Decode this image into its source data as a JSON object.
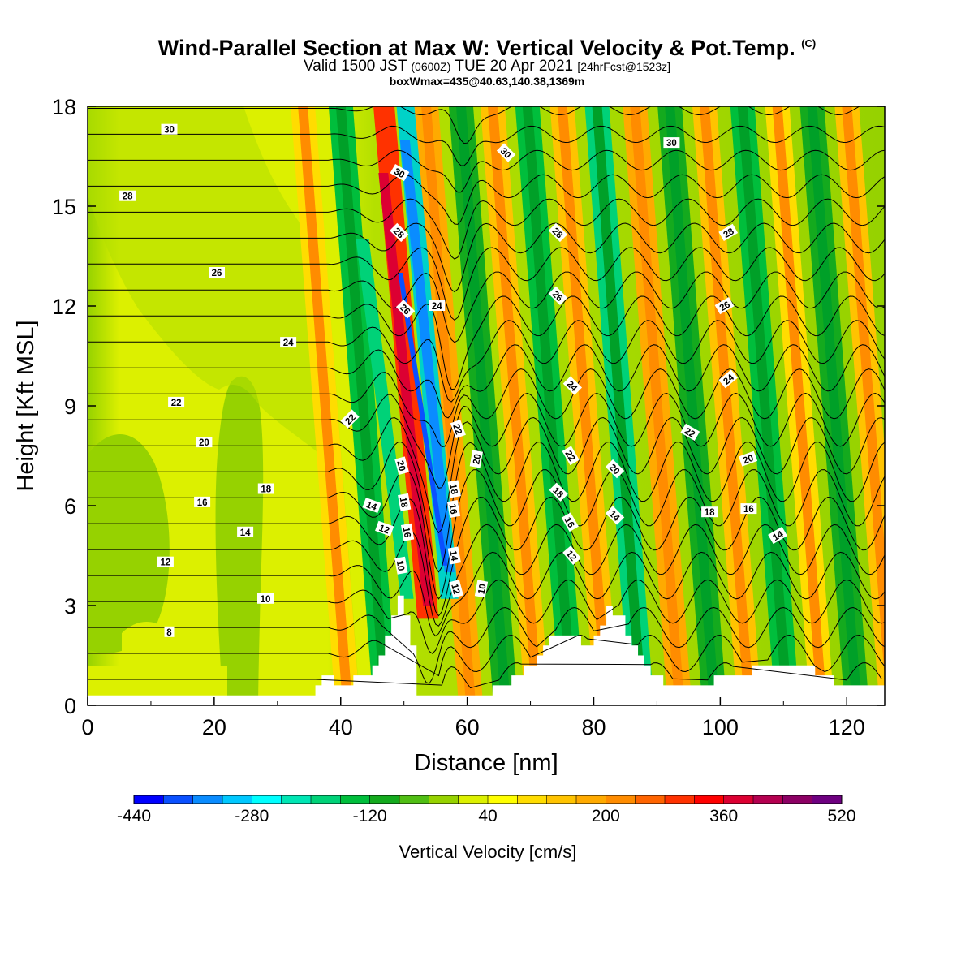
{
  "header": {
    "title": "Wind-Parallel Section at Max W: Vertical Velocity & Pot.Temp.",
    "title_mark": "(C)",
    "subtitle_main_a": "Valid 1500 JST",
    "subtitle_zulu": "(0600Z)",
    "subtitle_main_b": "TUE 20 Apr 2021",
    "subtitle_fcst": "[24hrFcst@1523z]",
    "info": "boxWmax=435@40.63,140.38,1369m"
  },
  "chart_data": {
    "type": "heatmap",
    "xlabel": "Distance [nm]",
    "ylabel": "Height [Kft MSL]",
    "xlim": [
      0,
      126
    ],
    "ylim": [
      0,
      18
    ],
    "x_ticks": [
      0,
      20,
      40,
      60,
      80,
      100,
      120
    ],
    "y_ticks": [
      0,
      3,
      6,
      9,
      12,
      15,
      18
    ],
    "colorbar": {
      "title": "Vertical Velocity [cm/s]",
      "tick_labels": [
        "-440",
        "-280",
        "-120",
        "40",
        "200",
        "360",
        "520"
      ],
      "tick_values": [
        -440,
        -280,
        -120,
        40,
        200,
        360,
        520
      ],
      "step": 40,
      "colors": [
        "#0000ff",
        "#0a50ff",
        "#0a8cff",
        "#00c8ff",
        "#00ffff",
        "#00e6b4",
        "#00d278",
        "#00be3c",
        "#14aa1e",
        "#50be14",
        "#96d200",
        "#dcf000",
        "#ffff00",
        "#ffdc00",
        "#ffc300",
        "#ffaa00",
        "#ff8c00",
        "#ff6400",
        "#ff3200",
        "#ff0000",
        "#dc0032",
        "#b40050",
        "#8c0064",
        "#6e0080"
      ]
    },
    "theta_contours": {
      "levels": [
        8,
        10,
        12,
        14,
        16,
        18,
        20,
        22,
        24,
        26,
        28,
        30
      ],
      "labels": [
        {
          "text": "30",
          "x": 12.9,
          "y": 17.3,
          "rot": 0
        },
        {
          "text": "28",
          "x": 6.3,
          "y": 15.3,
          "rot": 0
        },
        {
          "text": "26",
          "x": 20.4,
          "y": 13.0,
          "rot": 0
        },
        {
          "text": "24",
          "x": 31.7,
          "y": 10.9,
          "rot": 0
        },
        {
          "text": "22",
          "x": 14.0,
          "y": 9.1,
          "rot": 0
        },
        {
          "text": "20",
          "x": 18.4,
          "y": 7.9,
          "rot": 0
        },
        {
          "text": "18",
          "x": 28.2,
          "y": 6.5,
          "rot": 0
        },
        {
          "text": "16",
          "x": 18.1,
          "y": 6.1,
          "rot": 0
        },
        {
          "text": "14",
          "x": 24.9,
          "y": 5.2,
          "rot": 0
        },
        {
          "text": "12",
          "x": 12.3,
          "y": 4.3,
          "rot": 0
        },
        {
          "text": "10",
          "x": 28.1,
          "y": 3.2,
          "rot": 0
        },
        {
          "text": "8",
          "x": 12.9,
          "y": 2.2,
          "rot": 0
        },
        {
          "text": "30",
          "x": 49.3,
          "y": 16.0,
          "rot": 30
        },
        {
          "text": "28",
          "x": 49.2,
          "y": 14.2,
          "rot": 45
        },
        {
          "text": "26",
          "x": 50.2,
          "y": 11.9,
          "rot": 45
        },
        {
          "text": "24",
          "x": 55.2,
          "y": 12.0,
          "rot": 0
        },
        {
          "text": "22",
          "x": 41.5,
          "y": 8.6,
          "rot": -45
        },
        {
          "text": "22",
          "x": 58.5,
          "y": 8.3,
          "rot": 70
        },
        {
          "text": "20",
          "x": 49.6,
          "y": 7.2,
          "rot": 75
        },
        {
          "text": "20",
          "x": 61.5,
          "y": 7.4,
          "rot": -80
        },
        {
          "text": "18",
          "x": 50.0,
          "y": 6.1,
          "rot": 80
        },
        {
          "text": "18",
          "x": 57.9,
          "y": 6.5,
          "rot": 80
        },
        {
          "text": "16",
          "x": 50.5,
          "y": 5.2,
          "rot": 80
        },
        {
          "text": "16",
          "x": 57.8,
          "y": 5.9,
          "rot": 80
        },
        {
          "text": "14",
          "x": 44.9,
          "y": 6.0,
          "rot": 20
        },
        {
          "text": "14",
          "x": 57.9,
          "y": 4.5,
          "rot": 80
        },
        {
          "text": "12",
          "x": 46.9,
          "y": 5.3,
          "rot": 20
        },
        {
          "text": "12",
          "x": 58.2,
          "y": 3.5,
          "rot": 75
        },
        {
          "text": "10",
          "x": 49.5,
          "y": 4.2,
          "rot": 80
        },
        {
          "text": "10",
          "x": 62.3,
          "y": 3.5,
          "rot": -80
        },
        {
          "text": "30",
          "x": 66.1,
          "y": 16.6,
          "rot": 45
        },
        {
          "text": "28",
          "x": 74.3,
          "y": 14.2,
          "rot": 45
        },
        {
          "text": "26",
          "x": 74.3,
          "y": 12.3,
          "rot": 45
        },
        {
          "text": "24",
          "x": 76.6,
          "y": 9.6,
          "rot": 45
        },
        {
          "text": "22",
          "x": 76.3,
          "y": 7.5,
          "rot": 60
        },
        {
          "text": "18",
          "x": 74.4,
          "y": 6.4,
          "rot": 45
        },
        {
          "text": "16",
          "x": 76.2,
          "y": 5.5,
          "rot": 60
        },
        {
          "text": "12",
          "x": 76.5,
          "y": 4.5,
          "rot": 50
        },
        {
          "text": "20",
          "x": 83.3,
          "y": 7.1,
          "rot": 45
        },
        {
          "text": "14",
          "x": 83.3,
          "y": 5.7,
          "rot": 45
        },
        {
          "text": "30",
          "x": 92.3,
          "y": 16.9,
          "rot": 0
        },
        {
          "text": "28",
          "x": 101.3,
          "y": 14.2,
          "rot": -30
        },
        {
          "text": "26",
          "x": 100.7,
          "y": 12.0,
          "rot": -30
        },
        {
          "text": "24",
          "x": 101.3,
          "y": 9.8,
          "rot": -40
        },
        {
          "text": "22",
          "x": 95.2,
          "y": 8.2,
          "rot": 30
        },
        {
          "text": "20",
          "x": 104.4,
          "y": 7.4,
          "rot": -20
        },
        {
          "text": "18",
          "x": 98.3,
          "y": 5.8,
          "rot": 0
        },
        {
          "text": "16",
          "x": 104.5,
          "y": 5.9,
          "rot": 0
        },
        {
          "text": "14",
          "x": 109.1,
          "y": 5.1,
          "rot": -30
        }
      ]
    },
    "terrain_height_kft": [
      [
        0,
        0.3
      ],
      [
        35.5,
        0.3
      ],
      [
        37,
        0.9
      ],
      [
        40,
        0.6
      ],
      [
        44,
        0.9
      ],
      [
        46,
        1.5
      ],
      [
        48,
        2.7
      ],
      [
        49,
        3.2
      ],
      [
        50.5,
        2.4
      ],
      [
        51.5,
        0.9
      ],
      [
        52,
        0.3
      ],
      [
        63,
        0.3
      ],
      [
        65,
        0.6
      ],
      [
        70,
        1.2
      ],
      [
        73,
        2.0
      ],
      [
        75,
        2.2
      ],
      [
        77,
        2.0
      ],
      [
        79,
        1.7
      ],
      [
        81,
        2.4
      ],
      [
        82,
        2.9
      ],
      [
        84,
        2.7
      ],
      [
        86,
        1.7
      ],
      [
        89,
        1.0
      ],
      [
        91,
        0.6
      ],
      [
        98,
        0.6
      ],
      [
        99,
        0.9
      ],
      [
        110,
        1.2
      ],
      [
        113,
        1.3
      ],
      [
        115,
        1.0
      ],
      [
        117,
        0.8
      ],
      [
        120,
        0.6
      ],
      [
        126,
        0.6
      ]
    ]
  }
}
